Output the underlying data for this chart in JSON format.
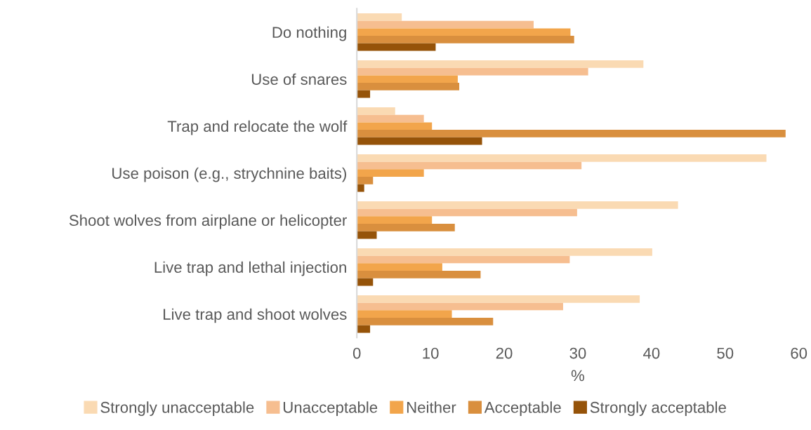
{
  "chart_data": {
    "type": "bar",
    "orientation": "horizontal",
    "xlabel": "%",
    "categories": [
      "Do nothing",
      "Use of snares",
      "Trap and relocate the wolf",
      "Use poison (e.g., strychnine baits)",
      "Shoot wolves from airplane or helicopter",
      "Live trap and lethal injection",
      "Live trap and shoot wolves"
    ],
    "series": [
      {
        "name": "Strongly unacceptable",
        "color": "#fadab3",
        "values": [
          6.1,
          38.9,
          5.2,
          55.6,
          43.6,
          40.1,
          38.4
        ]
      },
      {
        "name": "Unacceptable",
        "color": "#f6be90",
        "values": [
          24.0,
          31.4,
          9.1,
          30.5,
          29.9,
          28.9,
          28.0
        ]
      },
      {
        "name": "Neither",
        "color": "#f2a54b",
        "values": [
          29.0,
          13.7,
          10.2,
          9.1,
          10.2,
          11.6,
          12.9
        ]
      },
      {
        "name": "Acceptable",
        "color": "#d98f3e",
        "values": [
          29.5,
          13.9,
          58.2,
          2.2,
          13.3,
          16.8,
          18.5
        ]
      },
      {
        "name": "Strongly acceptable",
        "color": "#955309",
        "values": [
          10.7,
          1.8,
          17.0,
          1.0,
          2.7,
          2.2,
          1.8
        ]
      }
    ],
    "xlim": [
      0,
      60
    ],
    "xticks": [
      0,
      10,
      20,
      30,
      40,
      50,
      60
    ],
    "grid": false,
    "legend": "bottom"
  }
}
